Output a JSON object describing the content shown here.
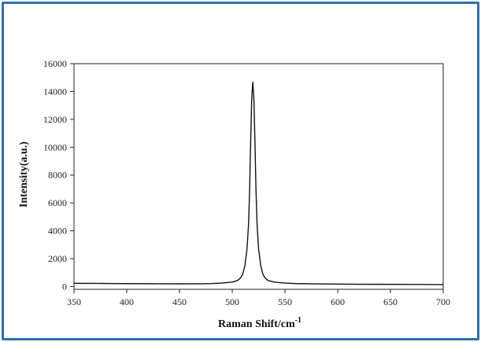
{
  "colors": {
    "frame": "#2f6fb0",
    "line": "#111111",
    "axis": "#222222"
  },
  "chart_data": {
    "type": "line",
    "title": "",
    "xlabel": "Raman Shift/cm",
    "xlabel_superscript": "-1",
    "ylabel": "Intensity(a.u.)",
    "xlim": [
      350,
      700
    ],
    "ylim": [
      -200,
      16000
    ],
    "xticks": [
      350,
      400,
      450,
      500,
      550,
      600,
      650,
      700
    ],
    "yticks": [
      0,
      2000,
      4000,
      6000,
      8000,
      10000,
      12000,
      14000,
      16000
    ],
    "grid": false,
    "series": [
      {
        "points": [
          [
            350,
            230
          ],
          [
            370,
            225
          ],
          [
            390,
            215
          ],
          [
            410,
            210
          ],
          [
            430,
            200
          ],
          [
            450,
            195
          ],
          [
            470,
            200
          ],
          [
            480,
            215
          ],
          [
            490,
            250
          ],
          [
            500,
            320
          ],
          [
            505,
            430
          ],
          [
            508,
            620
          ],
          [
            510,
            900
          ],
          [
            512,
            1500
          ],
          [
            514,
            2700
          ],
          [
            515.5,
            4500
          ],
          [
            516.5,
            7000
          ],
          [
            517.5,
            10500
          ],
          [
            518.5,
            13500
          ],
          [
            519.5,
            14700
          ],
          [
            520.5,
            13500
          ],
          [
            521.5,
            10500
          ],
          [
            522.5,
            7000
          ],
          [
            523.5,
            4500
          ],
          [
            525,
            2700
          ],
          [
            527,
            1500
          ],
          [
            529,
            900
          ],
          [
            531,
            620
          ],
          [
            534,
            430
          ],
          [
            540,
            320
          ],
          [
            550,
            250
          ],
          [
            560,
            215
          ],
          [
            580,
            190
          ],
          [
            600,
            175
          ],
          [
            620,
            165
          ],
          [
            640,
            160
          ],
          [
            660,
            155
          ],
          [
            680,
            150
          ],
          [
            700,
            145
          ]
        ]
      }
    ]
  }
}
